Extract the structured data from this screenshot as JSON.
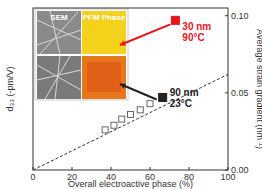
{
  "chart_data": {
    "type": "scatter",
    "xlabel": "Overall electroactive phase (%)",
    "ylabel": "d₃₃ (-pm/V)",
    "y2label": "Average strain gradient (nm⁻¹)",
    "xlim": [
      0,
      100
    ],
    "xticks": [
      0,
      20,
      40,
      60,
      80,
      100
    ],
    "y2lim": [
      0,
      0.105
    ],
    "y2ticks": [
      {
        "value": 0,
        "label": "0.00"
      },
      {
        "value": 0.05,
        "label": "0.05"
      },
      {
        "value": 0.1,
        "label": "0.10"
      }
    ],
    "tick_labels": "x",
    "series": [
      {
        "type": "line",
        "line_style": "dashed",
        "color": "#333333",
        "axis": "y2",
        "x": [
          0,
          100
        ],
        "values": [
          0,
          0.062
        ]
      },
      {
        "type": "scatter",
        "marker": "square-open",
        "color": "#666666",
        "axis": "y2",
        "x": [
          37,
          41.5,
          45.5,
          50,
          55,
          60
        ],
        "values": [
          0.026,
          0.029,
          0.033,
          0.036,
          0.039,
          0.043
        ]
      },
      {
        "type": "scatter",
        "marker": "square",
        "color": "#222222",
        "axis": "y2",
        "x": [
          66.5
        ],
        "values": [
          0.047
        ]
      },
      {
        "type": "scatter",
        "marker": "square",
        "color": "#e8141c",
        "axis": "y2",
        "x": [
          73
        ],
        "values": [
          0.097
        ]
      }
    ],
    "annotations": [
      {
        "text": "30 nm",
        "color": "#e8141c"
      },
      {
        "text": "90°C",
        "color": "#e8141c"
      },
      {
        "text": "90 nm",
        "color": "#222222"
      },
      {
        "text": "23°C",
        "color": "#222222"
      },
      {
        "text": "SEM",
        "color": "#ffffff"
      },
      {
        "text": "PFM Phase",
        "color": "#ffffff"
      }
    ]
  }
}
